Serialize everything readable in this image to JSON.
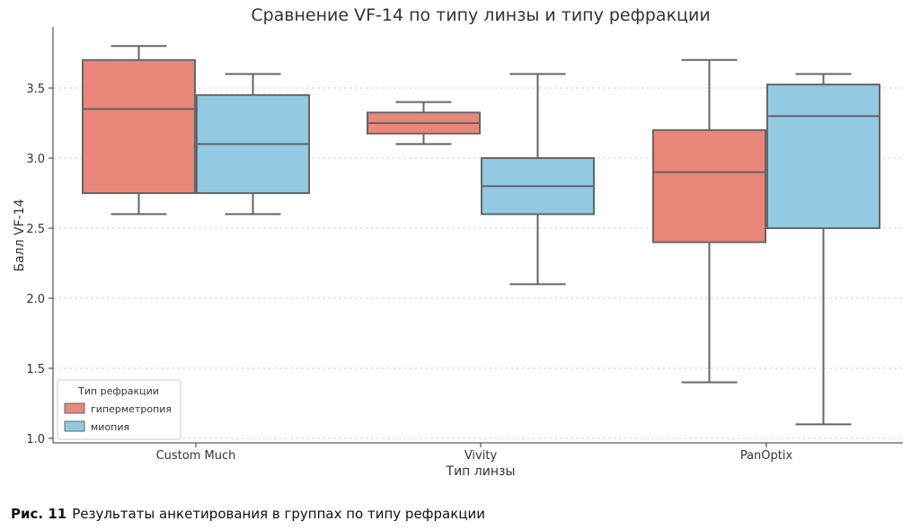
{
  "chart_data": {
    "type": "box",
    "title": "Сравнение VF-14 по типу линзы и типу рефракции",
    "xlabel": "Тип линзы",
    "ylabel": "Балл VF-14",
    "categories": [
      "Custom Much",
      "Vivity",
      "PanOptix"
    ],
    "ylim": [
      0.95,
      3.9
    ],
    "yticks": [
      "1.0",
      "1.5",
      "2.0",
      "2.5",
      "3.0",
      "3.5"
    ],
    "grid": "horizontal",
    "legend": {
      "title": "Тип рефракции",
      "placement": "lower-left"
    },
    "series": [
      {
        "name": "гиперметропия",
        "color": "#e8877a",
        "boxes": [
          {
            "whisker_low": 2.6,
            "q1": 2.75,
            "median": 3.35,
            "q3": 3.7,
            "whisker_high": 3.8
          },
          {
            "whisker_low": 3.1,
            "q1": 3.175,
            "median": 3.25,
            "q3": 3.325,
            "whisker_high": 3.4
          },
          {
            "whisker_low": 1.4,
            "q1": 2.4,
            "median": 2.9,
            "q3": 3.2,
            "whisker_high": 3.7
          }
        ]
      },
      {
        "name": "миопия",
        "color": "#93c9e3",
        "boxes": [
          {
            "whisker_low": 2.6,
            "q1": 2.75,
            "median": 3.1,
            "q3": 3.45,
            "whisker_high": 3.6
          },
          {
            "whisker_low": 2.1,
            "q1": 2.6,
            "median": 2.8,
            "q3": 3.0,
            "whisker_high": 3.6
          },
          {
            "whisker_low": 1.1,
            "q1": 2.5,
            "median": 3.3,
            "q3": 3.525,
            "whisker_high": 3.6
          }
        ]
      }
    ]
  },
  "caption": {
    "label": "Рис. 11",
    "text": "Результаты анкетирования в группах по типу рефракции"
  }
}
